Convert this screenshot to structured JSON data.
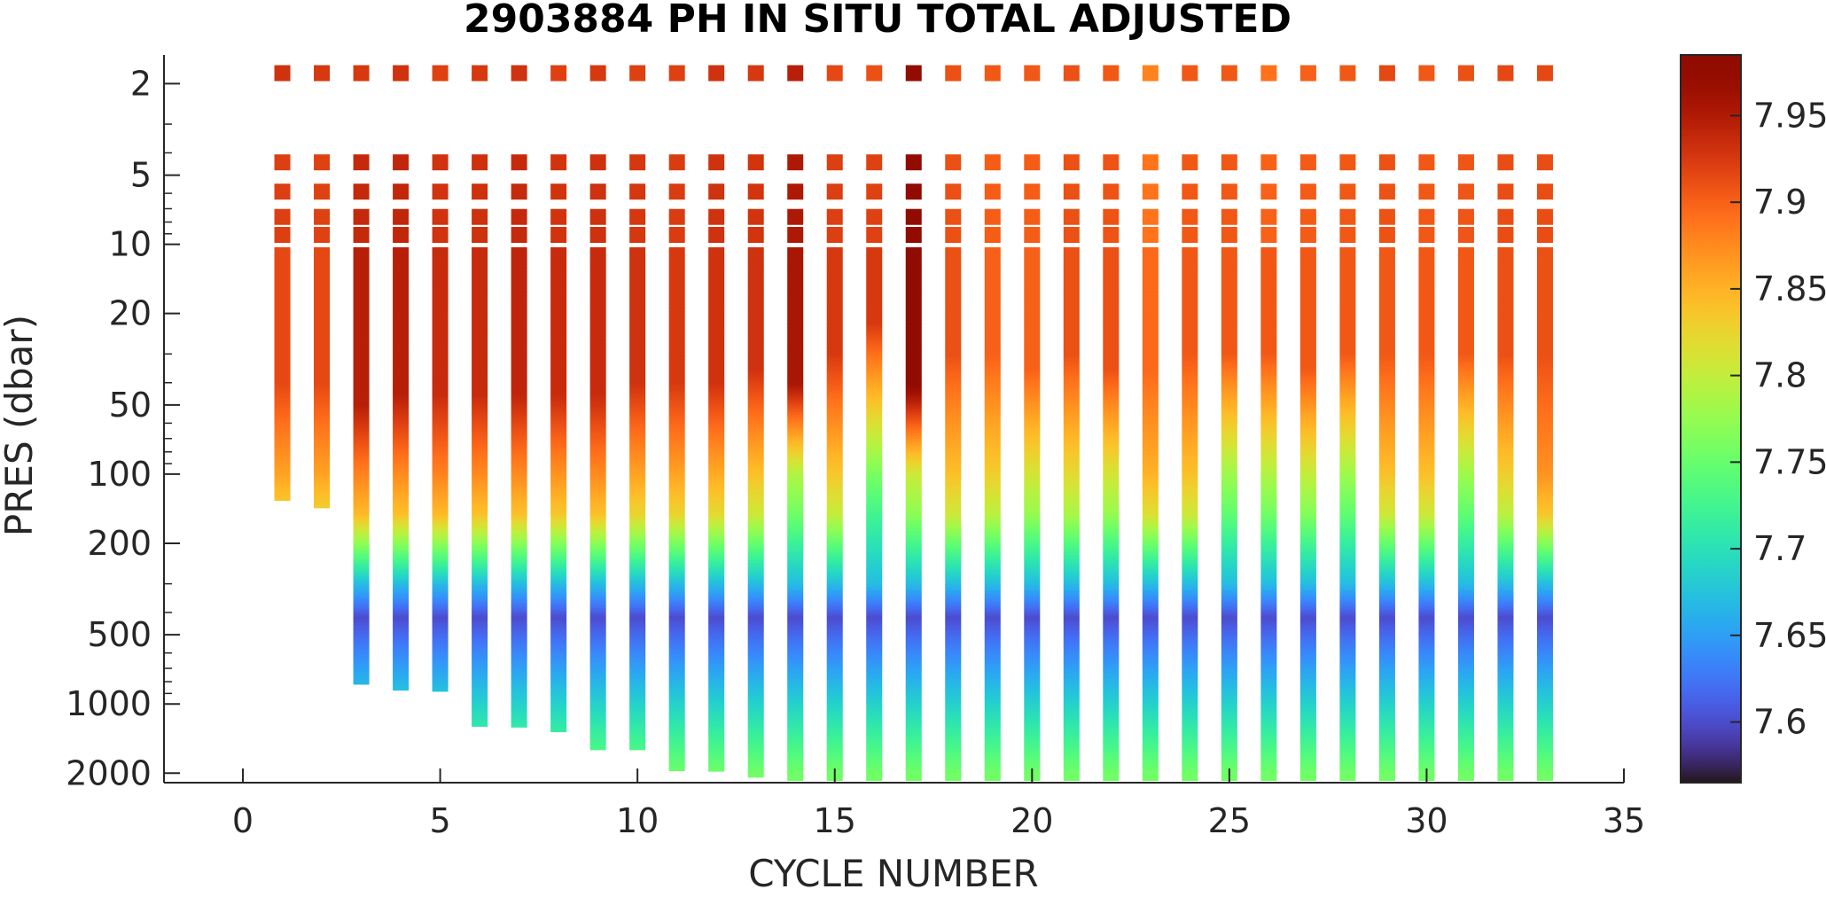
{
  "chart_data": {
    "type": "heatmap",
    "title": "2903884  PH IN SITU TOTAL ADJUSTED",
    "xlabel": "CYCLE NUMBER",
    "ylabel": "PRES (dbar)",
    "xlim": [
      -2,
      35
    ],
    "ylim": [
      1.5,
      2200
    ],
    "yscale": "log",
    "xticks": [
      0,
      5,
      10,
      15,
      20,
      25,
      30,
      35
    ],
    "xtick_labels": [
      "0",
      "5",
      "10",
      "15",
      "20",
      "25",
      "30",
      "35"
    ],
    "yticks": [
      2,
      5,
      10,
      20,
      50,
      100,
      200,
      500,
      1000,
      2000
    ],
    "ytick_labels": [
      "2",
      "5",
      "10",
      "20",
      "50",
      "100",
      "200",
      "500",
      "1000",
      "2000"
    ],
    "colorbar": {
      "colormap": "turbo",
      "clim": [
        7.565,
        7.985
      ],
      "ticks": [
        7.6,
        7.65,
        7.7,
        7.75,
        7.8,
        7.85,
        7.9,
        7.95
      ],
      "tick_labels": [
        "7.6",
        "7.65",
        "7.7",
        "7.75",
        "7.8",
        "7.85",
        "7.9",
        "7.95"
      ]
    },
    "cycles": [
      1,
      2,
      3,
      4,
      5,
      6,
      7,
      8,
      9,
      10,
      11,
      12,
      13,
      14,
      15,
      16,
      17,
      18,
      19,
      20,
      21,
      22,
      23,
      24,
      25,
      26,
      27,
      28,
      29,
      30,
      31,
      32,
      33
    ],
    "max_pressure_dbar": [
      130,
      140,
      820,
      870,
      880,
      1250,
      1260,
      1320,
      1580,
      1580,
      1950,
      1960,
      2080,
      2150,
      2150,
      2150,
      2150,
      2150,
      2150,
      2150,
      2150,
      2150,
      2150,
      2150,
      2150,
      2150,
      2150,
      2150,
      2150,
      2150,
      2150,
      2150,
      2150
    ],
    "surface_ph": [
      7.93,
      7.925,
      7.925,
      7.93,
      7.92,
      7.925,
      7.93,
      7.92,
      7.925,
      7.92,
      7.92,
      7.93,
      7.925,
      7.945,
      7.915,
      7.91,
      7.975,
      7.91,
      7.905,
      7.905,
      7.91,
      7.905,
      7.88,
      7.905,
      7.905,
      7.89,
      7.9,
      7.905,
      7.915,
      7.905,
      7.91,
      7.915,
      7.915
    ],
    "mixed_layer_ph": [
      7.915,
      7.915,
      7.945,
      7.945,
      7.935,
      7.935,
      7.94,
      7.935,
      7.935,
      7.93,
      7.925,
      7.93,
      7.93,
      7.955,
      7.925,
      7.925,
      7.98,
      7.91,
      7.9,
      7.9,
      7.91,
      7.91,
      7.895,
      7.905,
      7.905,
      7.905,
      7.905,
      7.905,
      7.905,
      7.905,
      7.905,
      7.91,
      7.91
    ],
    "mixed_layer_depth_dbar": [
      40,
      40,
      50,
      45,
      45,
      45,
      45,
      45,
      45,
      40,
      40,
      40,
      35,
      40,
      30,
      22,
      40,
      30,
      30,
      35,
      30,
      35,
      35,
      30,
      30,
      30,
      35,
      30,
      30,
      30,
      30,
      30,
      30
    ],
    "ph_at_100dbar": [
      7.86,
      7.86,
      7.88,
      7.875,
      7.88,
      7.875,
      7.875,
      7.87,
      7.875,
      7.86,
      7.86,
      7.855,
      7.84,
      7.79,
      7.835,
      7.76,
      7.805,
      7.84,
      7.83,
      7.81,
      7.82,
      7.81,
      7.85,
      7.84,
      7.78,
      7.79,
      7.8,
      7.78,
      7.84,
      7.84,
      7.78,
      7.83,
      7.87
    ],
    "oxycline_top_dbar": 150,
    "ph_at_300dbar": 7.67,
    "ph_minimum": 7.6,
    "ph_minimum_depth_dbar": 420,
    "ph_at_2000dbar": 7.755
  }
}
